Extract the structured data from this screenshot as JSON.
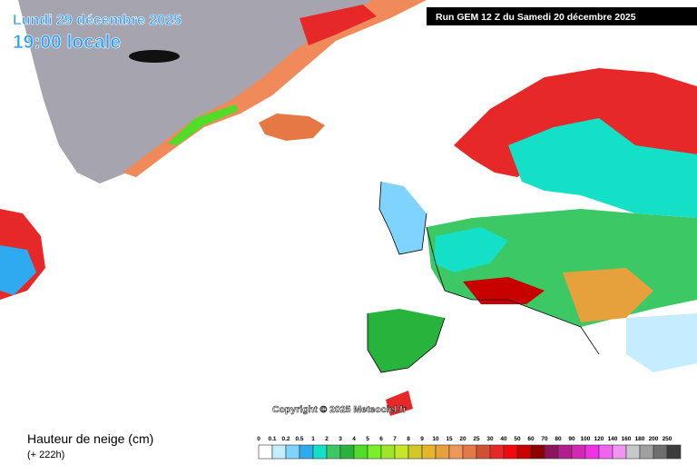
{
  "header": {
    "date": "Lundi 29 décembre 2025",
    "time": "19:00 locale",
    "run": "Run GEM 12 Z du Samedi 20 décembre 2025"
  },
  "copyright": "Copyright © 2025 Meteociel.fr",
  "legend": {
    "title": "Hauteur de neige (cm)",
    "lead": "(+ 222h)",
    "items": [
      {
        "label": "0",
        "color": "#ffffff"
      },
      {
        "label": "0.1",
        "color": "#c6ecff"
      },
      {
        "label": "0.2",
        "color": "#7fd4ff"
      },
      {
        "label": "0.5",
        "color": "#2eaaf0"
      },
      {
        "label": "1",
        "color": "#14e0c8"
      },
      {
        "label": "2",
        "color": "#3cc864"
      },
      {
        "label": "3",
        "color": "#28b43c"
      },
      {
        "label": "4",
        "color": "#50dc28"
      },
      {
        "label": "5",
        "color": "#78f028"
      },
      {
        "label": "6",
        "color": "#a0e628"
      },
      {
        "label": "7",
        "color": "#c8e628"
      },
      {
        "label": "8",
        "color": "#d2c828"
      },
      {
        "label": "9",
        "color": "#e6b428"
      },
      {
        "label": "10",
        "color": "#e6a03c"
      },
      {
        "label": "15",
        "color": "#f0965a"
      },
      {
        "label": "20",
        "color": "#e67846"
      },
      {
        "label": "25",
        "color": "#d25032"
      },
      {
        "label": "30",
        "color": "#e62828"
      },
      {
        "label": "40",
        "color": "#f00a0a"
      },
      {
        "label": "50",
        "color": "#c80000"
      },
      {
        "label": "60",
        "color": "#8c0000"
      },
      {
        "label": "70",
        "color": "#8c145a"
      },
      {
        "label": "80",
        "color": "#b41e8c"
      },
      {
        "label": "90",
        "color": "#d228b4"
      },
      {
        "label": "100",
        "color": "#f032e6"
      },
      {
        "label": "120",
        "color": "#f064f0"
      },
      {
        "label": "140",
        "color": "#f096f0"
      },
      {
        "label": "160",
        "color": "#c8c8c8"
      },
      {
        "label": "180",
        "color": "#a0a0a0"
      },
      {
        "label": "200",
        "color": "#6e6e6e"
      },
      {
        "label": "250",
        "color": "#3c3c3c"
      }
    ]
  }
}
